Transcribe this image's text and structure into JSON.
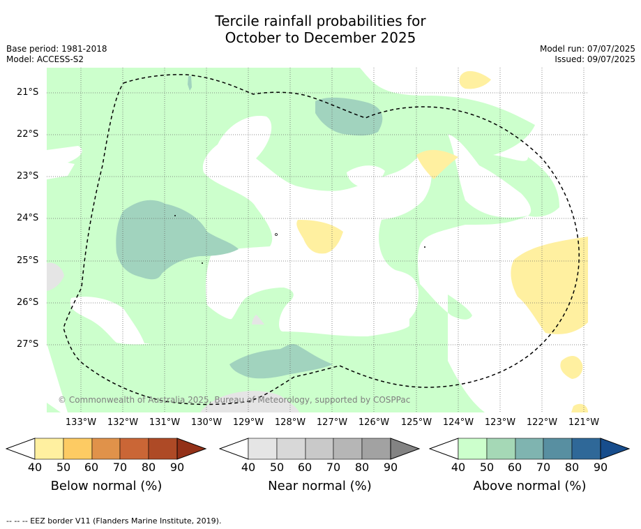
{
  "title_line1": "Tercile rainfall probabilities for",
  "title_line2": "October to December 2025",
  "meta_left": {
    "base_period": "Base period: 1981-2018",
    "model": "Model: ACCESS-S2"
  },
  "meta_right": {
    "model_run": "Model run: 07/07/2025",
    "issued": "Issued: 09/07/2025"
  },
  "lat_labels": [
    "21°S",
    "22°S",
    "23°S",
    "24°S",
    "25°S",
    "26°S",
    "27°S"
  ],
  "lon_labels": [
    "133°W",
    "132°W",
    "131°W",
    "130°W",
    "129°W",
    "128°W",
    "127°W",
    "126°W",
    "125°W",
    "124°W",
    "123°W",
    "122°W",
    "121°W"
  ],
  "copyright": "© Commonwealth of Australia 2025, Bureau of Meteorology, supported by COSPPac",
  "colorbars": [
    {
      "label": "Below normal (%)",
      "ticks": [
        "40",
        "50",
        "60",
        "70",
        "80",
        "90"
      ],
      "colors": [
        "#fff0a0",
        "#fdcb63",
        "#e0924a",
        "#ca6636",
        "#ae4a26",
        "#933118"
      ]
    },
    {
      "label": "Near normal (%)",
      "ticks": [
        "40",
        "50",
        "60",
        "70",
        "80",
        "90"
      ],
      "colors": [
        "#e5e5e5",
        "#d8d8d8",
        "#c9c9c9",
        "#b6b6b6",
        "#a2a2a2",
        "#838383"
      ]
    },
    {
      "label": "Above normal (%)",
      "ticks": [
        "40",
        "50",
        "60",
        "70",
        "80",
        "90"
      ],
      "colors": [
        "#ccffcc",
        "#a5d8b6",
        "#7fb4b0",
        "#588fa1",
        "#2f6898",
        "#174d8c"
      ]
    }
  ],
  "footer": "-- -- -- EEZ border V11 (Flanders Marine Institute, 2019).",
  "colors": {
    "green": "#ccffcc",
    "teal": "#a1d3be",
    "yellow": "#fff0a0",
    "grey": "#e5e5e5"
  }
}
